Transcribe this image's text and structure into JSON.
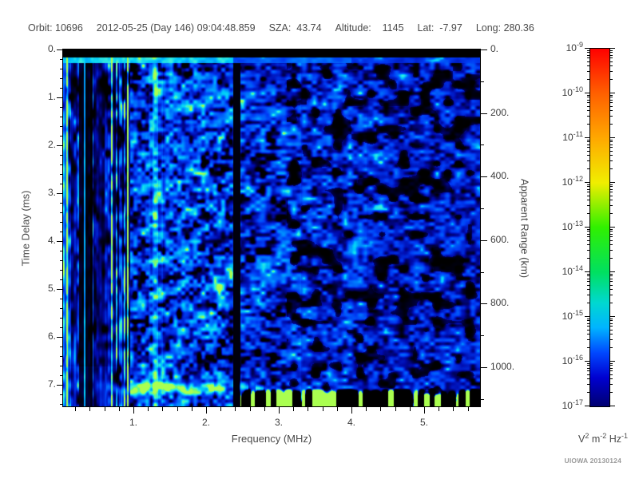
{
  "header": {
    "items": [
      "Orbit: 10696",
      "2012-05-25 (Day 146) 09:04:48.859",
      "SZA:  43.74",
      "Altitude:    1145",
      "Lat:  -7.97",
      "Long: 280.36"
    ]
  },
  "axes": {
    "x": {
      "label": "Frequency (MHz)",
      "major_ticks": [
        1,
        2,
        3,
        4,
        5
      ],
      "minor_step": 0.2,
      "range": [
        0.03,
        5.78
      ]
    },
    "y_left": {
      "label": "Time Delay (ms)",
      "major_ticks": [
        0,
        1,
        2,
        3,
        4,
        5,
        6,
        7
      ],
      "minor_step": 0.2,
      "range": [
        0,
        7.47
      ]
    },
    "y_right": {
      "label": "Apparent Range (km)",
      "major_ticks": [
        0,
        200,
        400,
        600,
        800,
        1000
      ],
      "minor_step": 100,
      "range": [
        0,
        1127
      ]
    }
  },
  "colorbar": {
    "base": "10",
    "exponents": [
      -9,
      -10,
      -11,
      -12,
      -13,
      -14,
      -15,
      -16,
      -17
    ],
    "units_parts": [
      [
        "V",
        "2"
      ],
      [
        "m",
        "-2"
      ],
      [
        "Hz",
        "-1"
      ]
    ],
    "gradient": [
      [
        "#ff0000",
        0
      ],
      [
        "#ff6000",
        12.5
      ],
      [
        "#ffa800",
        25
      ],
      [
        "#f0ee00",
        37.5
      ],
      [
        "#30f000",
        50
      ],
      [
        "#00e060",
        62.5
      ],
      [
        "#00d8d0",
        71
      ],
      [
        "#00b4ff",
        78
      ],
      [
        "#0048ff",
        85
      ],
      [
        "#0000d0",
        92
      ],
      [
        "#000070",
        100
      ]
    ]
  },
  "credit": "UIOWA 20130124",
  "chart_data": {
    "type": "heatmap",
    "title": "Radar sounder ionogram: received spectral density vs frequency and time delay",
    "xlabel": "Frequency (MHz)",
    "ylabel": "Time Delay (ms)",
    "ylabel_right": "Apparent Range (km)",
    "zlabel": "V^2 m^-2 Hz^-1",
    "x_range_mhz": [
      0.03,
      5.78
    ],
    "y_range_ms": [
      0,
      7.47
    ],
    "y2_range_km": [
      0,
      1127
    ],
    "x_ticks": [
      1,
      2,
      3,
      4,
      5
    ],
    "y_ticks": [
      0,
      1,
      2,
      3,
      4,
      5,
      6,
      7
    ],
    "y2_ticks": [
      0,
      200,
      400,
      600,
      800,
      1000
    ],
    "z_scale": "log",
    "z_range": [
      1e-17,
      1e-09
    ],
    "header_values": {
      "orbit": "10696",
      "date": "2012-05-25",
      "day": "146",
      "time": "09:04:48.859",
      "sza": "43.74",
      "altitude": "1145",
      "lat": "-7.97",
      "long": "280.36"
    },
    "features": [
      {
        "name": "transmit-blank-band",
        "time_ms": [
          0,
          0.16
        ],
        "freq_mhz": [
          0.03,
          5.78
        ],
        "level": "black (below 1e-17)"
      },
      {
        "name": "receiver-turn-on-row",
        "time_ms": [
          0.16,
          0.28
        ],
        "freq_mhz": [
          0.03,
          2.4
        ],
        "level": "bright cyan ~1e-14, fading above 2.4 MHz"
      },
      {
        "name": "low-frequency-striations",
        "freq_mhz": [
          0.03,
          0.95
        ],
        "time_ms": [
          0.3,
          7.47
        ],
        "pattern": "alternating bright-cyan / black vertical stripes; wide black band 0.25-0.43 MHz; bright column at left edge"
      },
      {
        "name": "plasma-oscillation-line",
        "freq_mhz": [
          1.2,
          1.4
        ],
        "time_ms": [
          0.3,
          7.47
        ],
        "level": "cyan vertical band ~1e-14"
      },
      {
        "name": "interference-gap",
        "freq_mhz": [
          2.37,
          2.47
        ],
        "time_ms": [
          0.16,
          7.47
        ],
        "level": "black vertical stripe"
      },
      {
        "name": "ionospheric-echo-trace",
        "time_ms": [
          6.9,
          7.4
        ],
        "freq_mhz": [
          0.62,
          3.75
        ],
        "level": "green/cyan blobs 1e-13..1e-12, brightest 1.0-2.0 MHz, dashed and sloping down 2.5-3.7 MHz"
      },
      {
        "name": "background-noise",
        "level": "blue speckle 1e-16..1e-15, dimmer with black patches above 3.5 MHz"
      }
    ]
  }
}
